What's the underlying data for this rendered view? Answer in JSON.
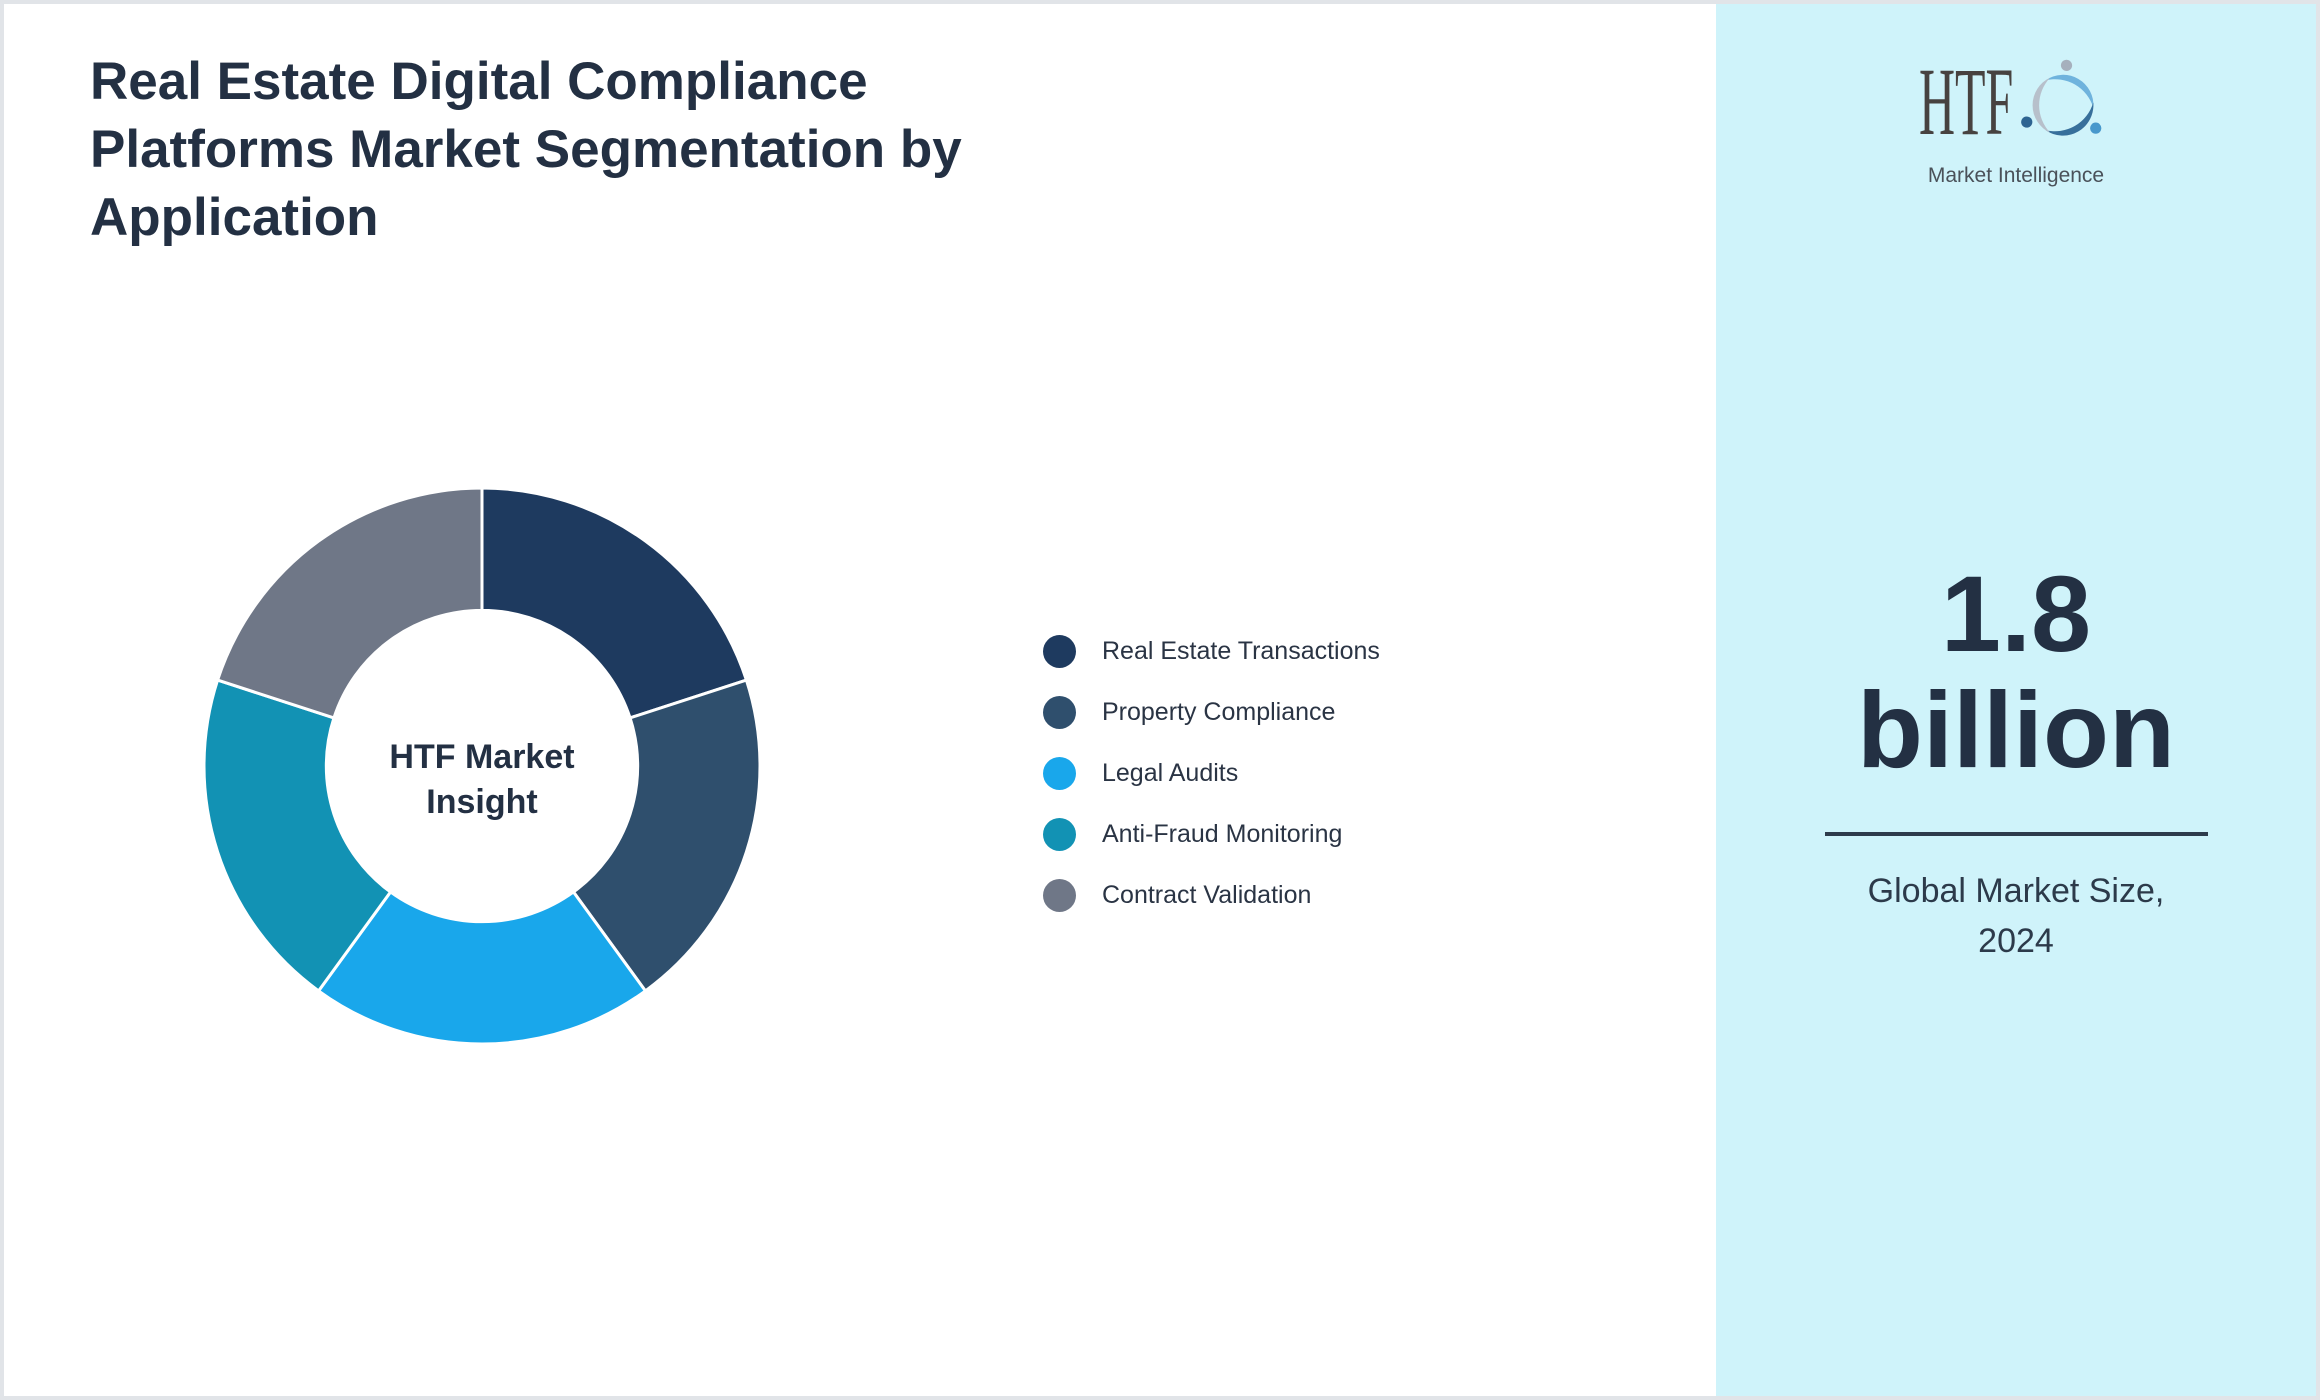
{
  "title": "Real Estate Digital Compliance\nPlatforms Market Segmentation by\nApplication",
  "chart_data": {
    "type": "pie",
    "subtype": "donut",
    "title": "Real Estate Digital Compliance Platforms Market Segmentation by Application",
    "categories": [
      "Real Estate Transactions",
      "Property Compliance",
      "Legal Audits",
      "Anti-Fraud Monitoring",
      "Contract Validation"
    ],
    "values": [
      20,
      20,
      20,
      20,
      20
    ],
    "unit": "%",
    "colors": [
      "#1e3a5f",
      "#2f4f6d",
      "#19a7eb",
      "#1292b4",
      "#6f7787"
    ],
    "start_angle_deg": 0,
    "direction": "clockwise",
    "inner_radius_ratio": 0.56,
    "separator_color": "#ffffff",
    "center_label": "HTF Market\nInsight",
    "legend_position": "right-of-chart"
  },
  "sidebar": {
    "background_color": "#cff3fa",
    "market_size_value": "1.8\nbillion",
    "market_size_caption": "Global Market Size,\n2024",
    "divider_color": "#2d3b4b"
  },
  "logo": {
    "brand": "HTF",
    "subtitle": "Market Intelligence",
    "mark_colors": [
      "#6fb3dd",
      "#376f9b",
      "#b7c0cb"
    ]
  }
}
